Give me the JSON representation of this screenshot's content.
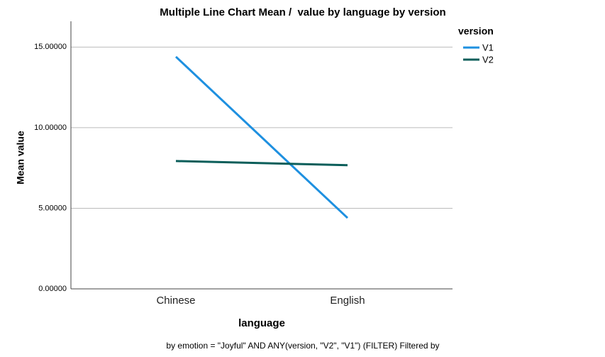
{
  "chart_data": {
    "type": "line",
    "title": "Multiple Line Chart Mean /  value by language by version",
    "x_label": "language",
    "y_label": "Mean value",
    "legend_title": "version",
    "footnote": "by emotion = \"Joyful\" AND ANY(version, \"V2\", \"V1\") (FILTER) Filtered by",
    "categories": [
      "Chinese",
      "English"
    ],
    "series": [
      {
        "name": "V1",
        "color": "#1e90e0",
        "values": [
          14.4,
          4.4
        ]
      },
      {
        "name": "V2",
        "color": "#0b5e5a",
        "values": [
          7.93,
          7.67
        ]
      }
    ],
    "ylim": [
      0,
      16.6
    ],
    "yticks": [
      {
        "value": 0,
        "label": "0.00000"
      },
      {
        "value": 5,
        "label": "5.00000"
      },
      {
        "value": 10,
        "label": "10.00000"
      },
      {
        "value": 15,
        "label": "15.00000"
      }
    ],
    "grid": true,
    "legend": "right"
  }
}
